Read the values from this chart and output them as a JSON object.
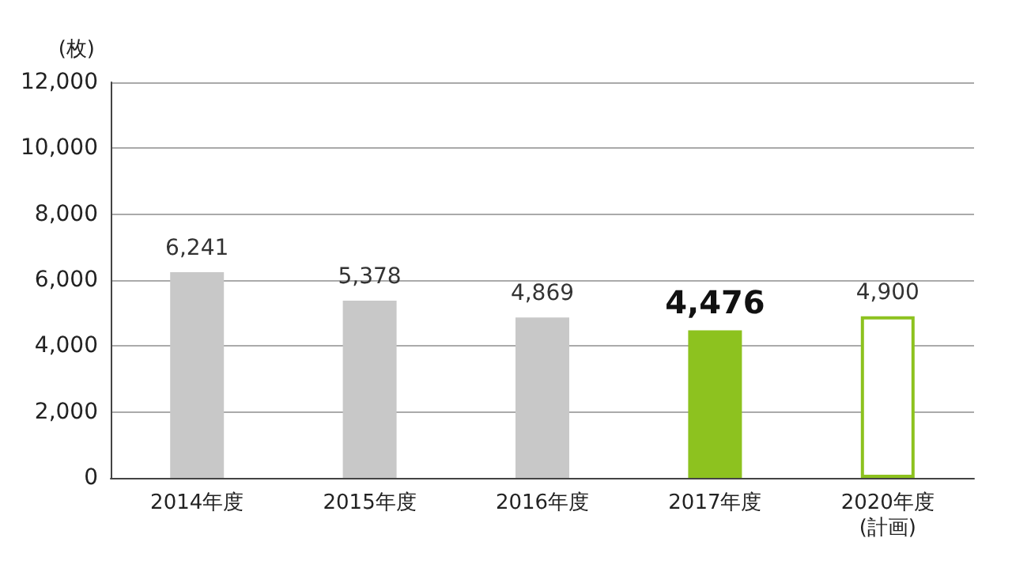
{
  "chart_data": {
    "type": "bar",
    "ylabel": "(枚)",
    "categories": [
      "2014年度",
      "2015年度",
      "2016年度",
      "2017年度",
      "2020年度\n(計画)"
    ],
    "values": [
      6241,
      5378,
      4869,
      4476,
      4900
    ],
    "value_labels": [
      "6,241",
      "5,378",
      "4,869",
      "4,476",
      "4,900"
    ],
    "colors": [
      "#c8c8c8",
      "#c8c8c8",
      "#c8c8c8",
      "#8dc21f",
      "#ffffff"
    ],
    "ylim": [
      0,
      12000
    ],
    "yticks": [
      {
        "value": 0,
        "label": "0"
      },
      {
        "value": 2000,
        "label": "2,000"
      },
      {
        "value": 4000,
        "label": "4,000"
      },
      {
        "value": 6000,
        "label": "6,000"
      },
      {
        "value": 8000,
        "label": "8,000"
      },
      {
        "value": 10000,
        "label": "10,000"
      },
      {
        "value": 12000,
        "label": "12,000"
      }
    ],
    "grid": "y"
  }
}
